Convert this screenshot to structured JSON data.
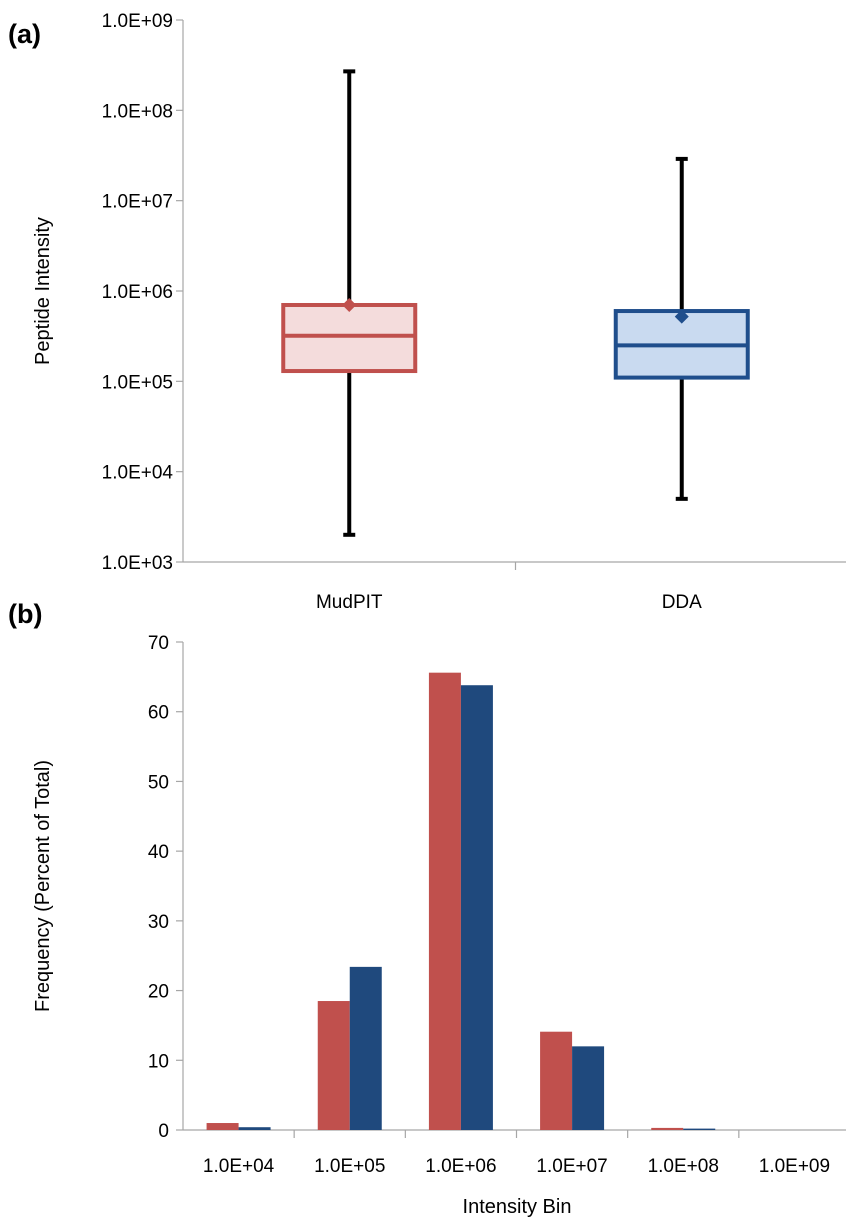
{
  "panel_a_label": "(a)",
  "panel_b_label": "(b)",
  "colors": {
    "mudpit_stroke": "#c0504d",
    "mudpit_fill": "#f4dcdc",
    "dda_stroke": "#1f4e8c",
    "dda_fill": "#c9daf0",
    "whisker": "#000000",
    "bar_mudpit": "#c0504d",
    "bar_dda": "#1f497d",
    "axis": "#a6a6a6"
  },
  "chart_data": [
    {
      "type": "box",
      "ylabel": "Peptide Intensity",
      "yscale": "log",
      "ylim": [
        1000,
        1000000000
      ],
      "yticks": [
        "1.0E+03",
        "1.0E+04",
        "1.0E+05",
        "1.0E+06",
        "1.0E+07",
        "1.0E+08",
        "1.0E+09"
      ],
      "categories": [
        "MudPIT",
        "DDA"
      ],
      "boxes": [
        {
          "name": "MudPIT",
          "min": 2000,
          "q1": 130000,
          "median": 320000,
          "q3": 700000,
          "max": 270000000,
          "mean": 700000
        },
        {
          "name": "DDA",
          "min": 5000,
          "q1": 110000,
          "median": 250000,
          "q3": 600000,
          "max": 29000000,
          "mean": 520000
        }
      ],
      "grid": false
    },
    {
      "type": "bar",
      "xlabel": "Intensity Bin",
      "ylabel": "Frequency (Percent of Total)",
      "ylim": [
        0,
        70
      ],
      "yticks": [
        0,
        10,
        20,
        30,
        40,
        50,
        60,
        70
      ],
      "categories": [
        "1.0E+04",
        "1.0E+05",
        "1.0E+06",
        "1.0E+07",
        "1.0E+08",
        "1.0E+09"
      ],
      "series": [
        {
          "values": [
            1.0,
            18.5,
            65.6,
            14.1,
            0.3,
            0.0
          ]
        },
        {
          "values": [
            0.4,
            23.4,
            63.8,
            12.0,
            0.2,
            0.0
          ]
        }
      ],
      "grid": false
    }
  ]
}
